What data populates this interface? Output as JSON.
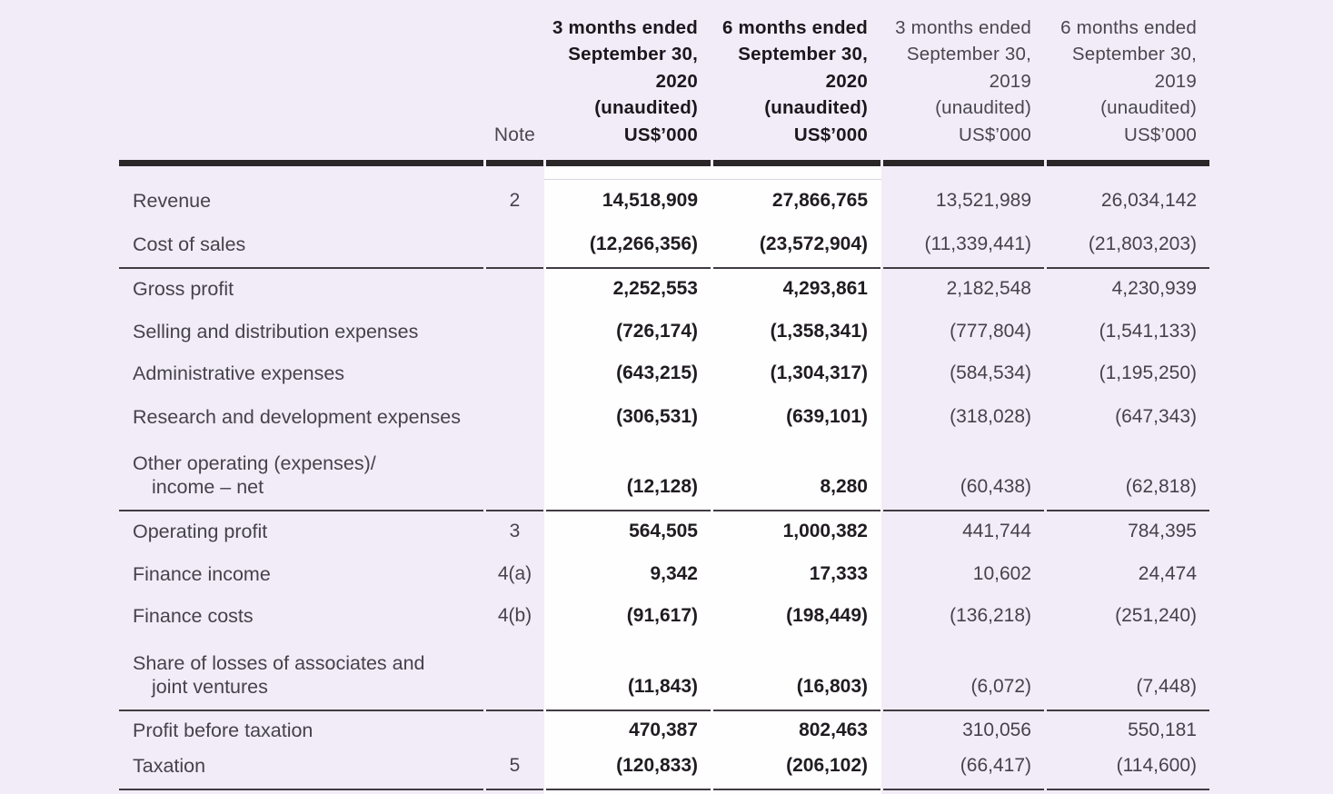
{
  "page": {
    "background_color": "#f1ecf7",
    "highlight_band_color": "#fefefe",
    "header_rule_color": "#2b2729",
    "row_rule_color": "#403c42"
  },
  "table": {
    "note_header": "Note",
    "columns": [
      {
        "id": "3m-2020",
        "bold": true,
        "lines": [
          "3 months ended",
          "September 30,",
          "2020",
          "(unaudited)",
          "US$’000"
        ]
      },
      {
        "id": "6m-2020",
        "bold": true,
        "lines": [
          "6 months ended",
          "September 30,",
          "2020",
          "(unaudited)",
          "US$’000"
        ]
      },
      {
        "id": "3m-2019",
        "bold": false,
        "lines": [
          "3 months ended",
          "September 30,",
          "2019",
          "(unaudited)",
          "US$’000"
        ]
      },
      {
        "id": "6m-2019",
        "bold": false,
        "lines": [
          "6 months ended",
          "September 30,",
          "2019",
          "(unaudited)",
          "US$’000"
        ]
      }
    ],
    "rows": [
      {
        "label": "Revenue",
        "label2": "",
        "note": "2",
        "c1": "14,518,909",
        "c2": "27,866,765",
        "c3": "13,521,989",
        "c4": "26,034,142",
        "rule_below": false
      },
      {
        "label": "Cost of sales",
        "label2": "",
        "note": "",
        "c1": "(12,266,356)",
        "c2": "(23,572,904)",
        "c3": "(11,339,441)",
        "c4": "(21,803,203)",
        "rule_below": true
      },
      {
        "label": "Gross profit",
        "label2": "",
        "note": "",
        "c1": "2,252,553",
        "c2": "4,293,861",
        "c3": "2,182,548",
        "c4": "4,230,939",
        "rule_below": false
      },
      {
        "label": "Selling and distribution expenses",
        "label2": "",
        "note": "",
        "c1": "(726,174)",
        "c2": "(1,358,341)",
        "c3": "(777,804)",
        "c4": "(1,541,133)",
        "rule_below": false
      },
      {
        "label": "Administrative expenses",
        "label2": "",
        "note": "",
        "c1": "(643,215)",
        "c2": "(1,304,317)",
        "c3": "(584,534)",
        "c4": "(1,195,250)",
        "rule_below": false
      },
      {
        "label": "Research and development expenses",
        "label2": "",
        "note": "",
        "c1": "(306,531)",
        "c2": "(639,101)",
        "c3": "(318,028)",
        "c4": "(647,343)",
        "rule_below": false
      },
      {
        "label": "Other operating (expenses)/",
        "label2": "income – net",
        "note": "",
        "c1": "(12,128)",
        "c2": "8,280",
        "c3": "(60,438)",
        "c4": "(62,818)",
        "rule_below": true
      },
      {
        "label": "Operating profit",
        "label2": "",
        "note": "3",
        "c1": "564,505",
        "c2": "1,000,382",
        "c3": "441,744",
        "c4": "784,395",
        "rule_below": false
      },
      {
        "label": "Finance income",
        "label2": "",
        "note": "4(a)",
        "c1": "9,342",
        "c2": "17,333",
        "c3": "10,602",
        "c4": "24,474",
        "rule_below": false
      },
      {
        "label": "Finance costs",
        "label2": "",
        "note": "4(b)",
        "c1": "(91,617)",
        "c2": "(198,449)",
        "c3": "(136,218)",
        "c4": "(251,240)",
        "rule_below": false
      },
      {
        "label": "Share of losses of associates and",
        "label2": "joint ventures",
        "note": "",
        "c1": "(11,843)",
        "c2": "(16,803)",
        "c3": "(6,072)",
        "c4": "(7,448)",
        "rule_below": true
      },
      {
        "label": "Profit before taxation",
        "label2": "",
        "note": "",
        "c1": "470,387",
        "c2": "802,463",
        "c3": "310,056",
        "c4": "550,181",
        "rule_below": false
      },
      {
        "label": "Taxation",
        "label2": "",
        "note": "5",
        "c1": "(120,833)",
        "c2": "(206,102)",
        "c3": "(66,417)",
        "c4": "(114,600)",
        "rule_below": true
      }
    ]
  }
}
